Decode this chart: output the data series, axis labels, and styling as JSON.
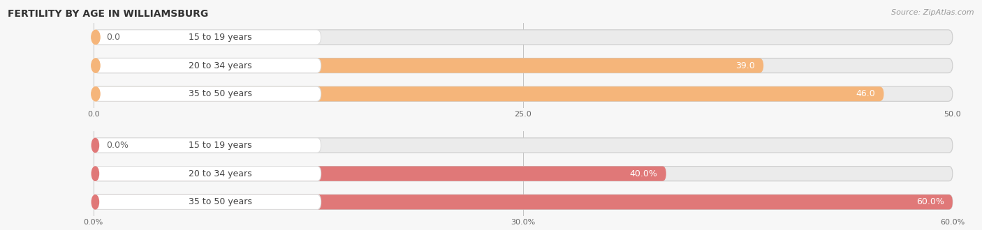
{
  "title": "FERTILITY BY AGE IN WILLIAMSBURG",
  "source": "Source: ZipAtlas.com",
  "top_chart": {
    "categories": [
      "15 to 19 years",
      "20 to 34 years",
      "35 to 50 years"
    ],
    "values": [
      0.0,
      39.0,
      46.0
    ],
    "max_value": 50.0,
    "xticks": [
      0.0,
      25.0,
      50.0
    ],
    "xtick_labels": [
      "0.0",
      "25.0",
      "50.0"
    ],
    "bar_color": "#f5b57a",
    "bar_bg_color": "#ebebeb",
    "pill_bg": "#ffffff",
    "pill_edge": "#dddddd",
    "dot_color": "#f5b57a",
    "text_color": "#444444",
    "value_inside_color": "#ffffff",
    "value_outside_color": "#666666"
  },
  "bottom_chart": {
    "categories": [
      "15 to 19 years",
      "20 to 34 years",
      "35 to 50 years"
    ],
    "values": [
      0.0,
      40.0,
      60.0
    ],
    "max_value": 60.0,
    "xticks": [
      0.0,
      30.0,
      60.0
    ],
    "xtick_labels": [
      "0.0%",
      "30.0%",
      "60.0%"
    ],
    "bar_color": "#e07878",
    "bar_bg_color": "#ebebeb",
    "pill_bg": "#ffffff",
    "pill_edge": "#dddddd",
    "dot_color": "#e07878",
    "text_color": "#444444",
    "value_inside_color": "#ffffff",
    "value_outside_color": "#666666"
  },
  "fig_bg_color": "#f7f7f7",
  "title_fontsize": 10,
  "label_fontsize": 9,
  "value_fontsize": 9,
  "tick_fontsize": 8,
  "source_fontsize": 8
}
